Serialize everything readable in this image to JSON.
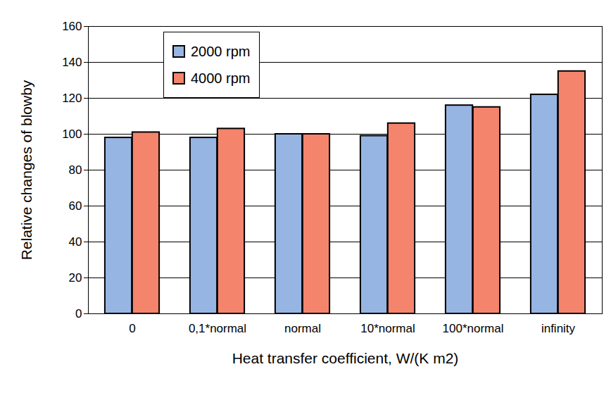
{
  "chart_data": {
    "type": "bar",
    "x_label": "Heat transfer coefficient, W/(K m2)",
    "y_label": "Relative changes of blowby",
    "categories": [
      "0",
      "0,1*normal",
      "normal",
      "10*normal",
      "100*normal",
      "infinity"
    ],
    "series": [
      {
        "name": "2000 rpm",
        "color": "#97b5e2",
        "values": [
          98,
          98,
          100,
          99,
          116,
          122
        ]
      },
      {
        "name": "4000 rpm",
        "color": "#f4846c",
        "values": [
          101,
          103,
          100,
          106,
          115,
          135
        ]
      }
    ],
    "ylim": [
      0,
      160
    ],
    "yticks": [
      0,
      20,
      40,
      60,
      80,
      100,
      120,
      140,
      160
    ],
    "grid": true,
    "legend": "upper left"
  }
}
